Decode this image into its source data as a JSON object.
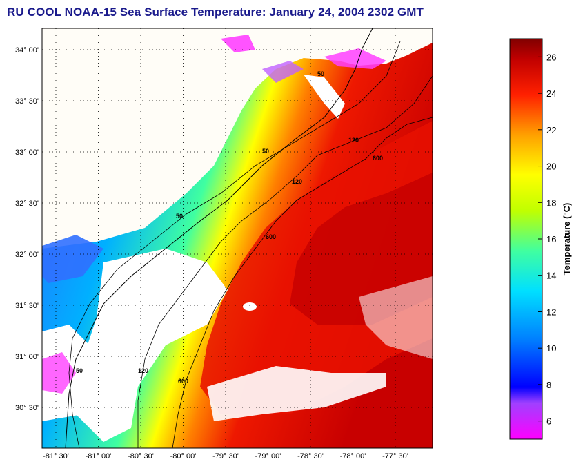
{
  "title": "RU COOL  NOAA-15  Sea Surface Temperature:  January 24, 2004 2302 GMT",
  "map": {
    "lat_labels": [
      "34° 00'",
      "33° 30'",
      "33° 00'",
      "32° 30'",
      "32° 00'",
      "31° 30'",
      "31° 00'",
      "30° 30'"
    ],
    "lon_labels": [
      "-81° 30'",
      "-81° 00'",
      "-80° 30'",
      "-80° 00'",
      "-79° 30'",
      "-79° 00'",
      "-78° 30'",
      "-78° 00'",
      "-77° 30'"
    ],
    "contour_labels": [
      "50",
      "120",
      "600"
    ],
    "grid": true
  },
  "colorbar": {
    "label": "Temperature (°C)",
    "ticks": [
      "6",
      "8",
      "10",
      "12",
      "14",
      "16",
      "18",
      "20",
      "22",
      "24",
      "26"
    ],
    "range": [
      5,
      27
    ]
  },
  "colors": {
    "title": "#1a1a8c",
    "land": "#fffdf7",
    "cold": "#ff33ff",
    "warm": "#cc0000"
  }
}
